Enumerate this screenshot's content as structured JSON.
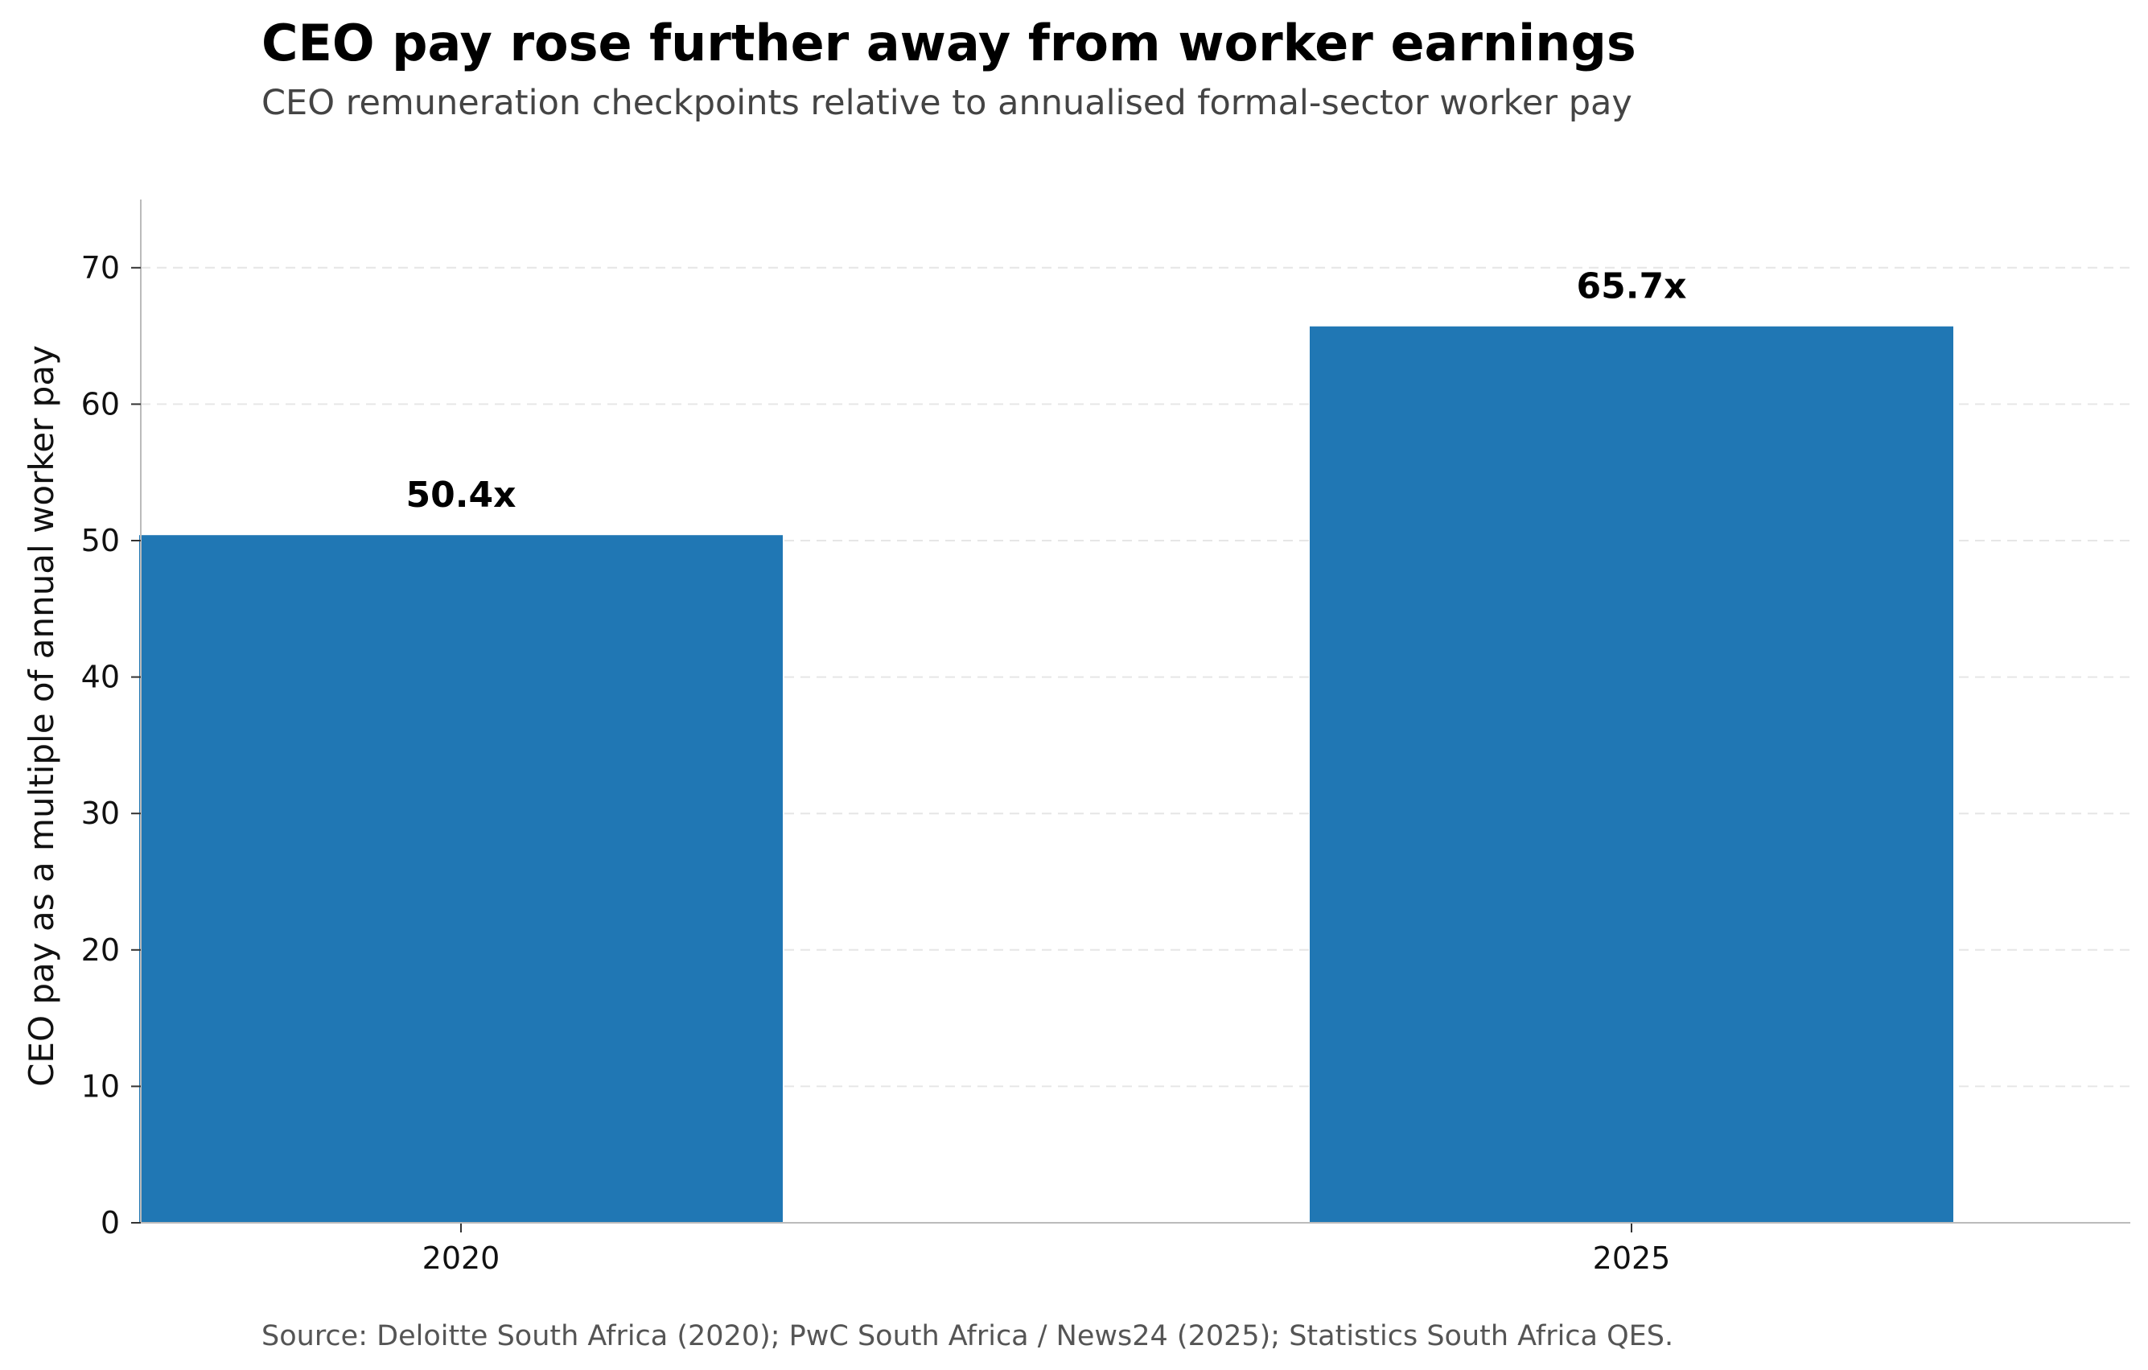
{
  "chart_data": {
    "type": "bar",
    "title": "CEO pay rose further away from worker earnings",
    "subtitle": "CEO remuneration checkpoints relative to annualised formal-sector worker pay",
    "xlabel": "",
    "ylabel": "CEO pay as a multiple of annual worker pay",
    "categories": [
      "2020",
      "2025"
    ],
    "values": [
      50.4,
      65.7
    ],
    "value_labels": [
      "50.4x",
      "65.7x"
    ],
    "ylim": [
      0,
      75
    ],
    "yticks": [
      0,
      10,
      20,
      30,
      40,
      50,
      60,
      70
    ],
    "grid": true,
    "bar_color": "#2077b4",
    "source": "Source: Deloitte South Africa (2020); PwC South Africa / News24 (2025); Statistics South Africa QES."
  }
}
